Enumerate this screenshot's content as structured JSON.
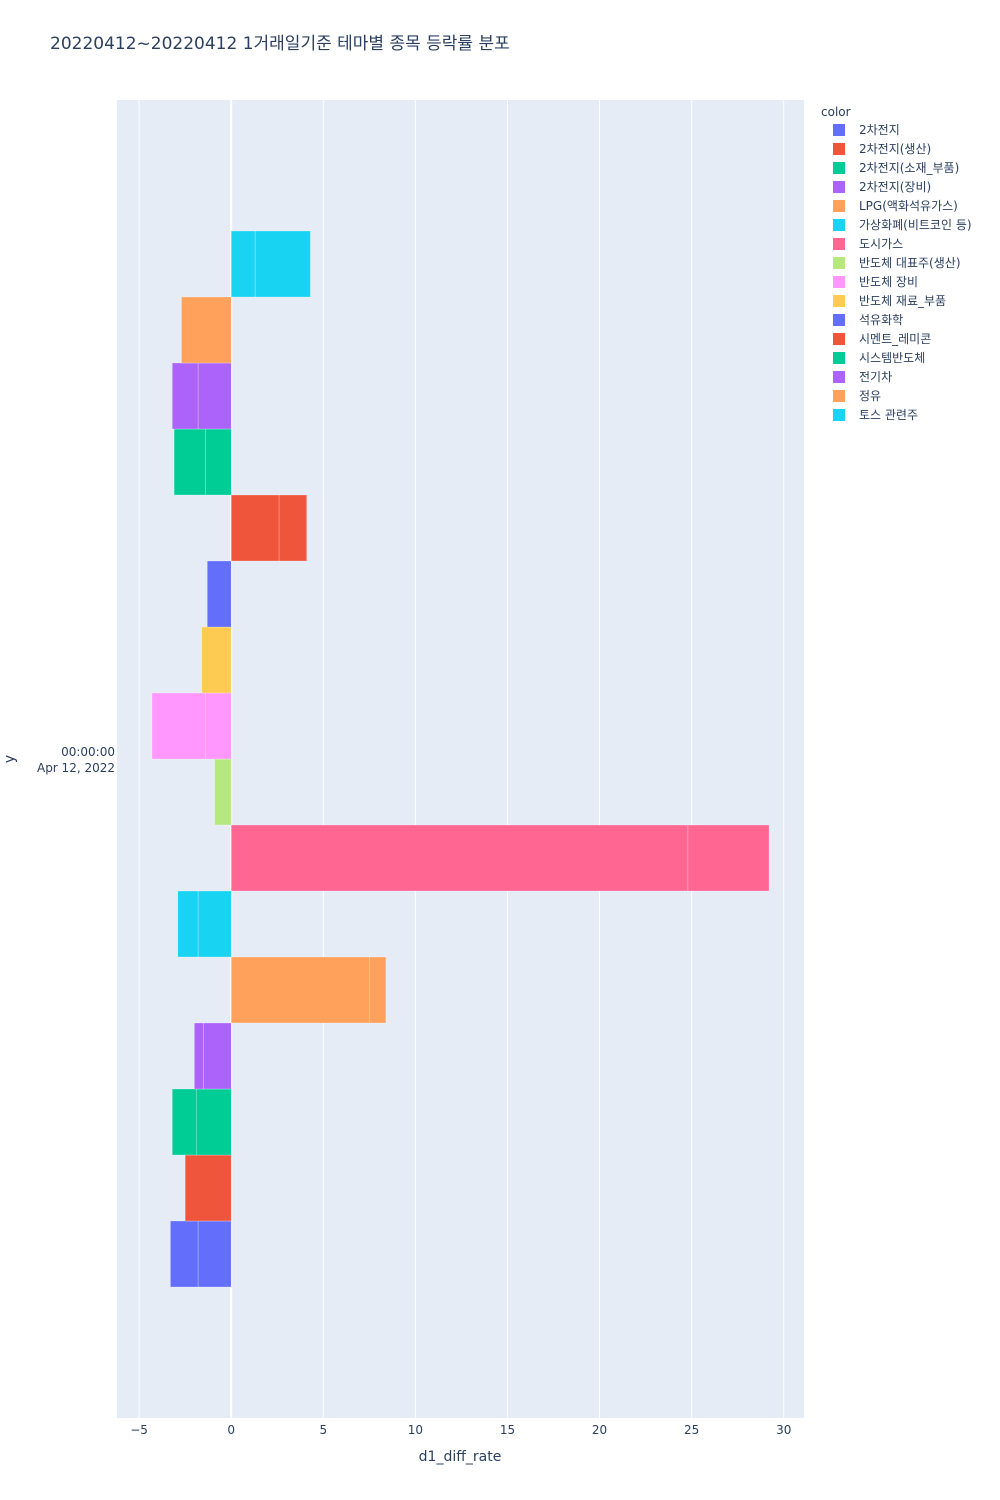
{
  "chart_data": {
    "type": "bar",
    "orientation": "horizontal",
    "barmode": "relative",
    "title": "20220412~20220412 1거래일기준 테마별 종목 등락률 분포",
    "xlabel": "d1_diff_rate",
    "ylabel": "y",
    "y_category_label": [
      "00:00:00",
      "Apr 12, 2022"
    ],
    "xlim": [
      -6.2,
      31.1
    ],
    "x_ticks": [
      -5,
      0,
      5,
      10,
      15,
      20,
      25,
      30
    ],
    "legend_title": "color",
    "legend_position": "right",
    "series": [
      {
        "name": "2차전지",
        "color": "#636efa",
        "segments": [
          -1.8,
          -1.5
        ]
      },
      {
        "name": "2차전지(생산)",
        "color": "#EF553B",
        "segments": [
          -2.5
        ]
      },
      {
        "name": "2차전지(소재_부품)",
        "color": "#00cc96",
        "segments": [
          -1.9,
          -1.3
        ]
      },
      {
        "name": "2차전지(장비)",
        "color": "#ab63fa",
        "segments": [
          -1.5,
          -0.5
        ]
      },
      {
        "name": "LPG(액화석유가스)",
        "color": "#FFA15A",
        "segments": [
          7.5,
          0.9
        ]
      },
      {
        "name": "가상화폐(비트코인 등)",
        "color": "#19d3f3",
        "segments": [
          -1.8,
          -1.1
        ]
      },
      {
        "name": "도시가스",
        "color": "#FF6692",
        "segments": [
          24.8,
          4.4
        ]
      },
      {
        "name": "반도체 대표주(생산)",
        "color": "#B6E880",
        "segments": [
          -0.9
        ]
      },
      {
        "name": "반도체 장비",
        "color": "#FF97FF",
        "segments": [
          -1.4,
          -2.9
        ]
      },
      {
        "name": "반도체 재료_부품",
        "color": "#FECB52",
        "segments": [
          -1.6
        ]
      },
      {
        "name": "석유화학",
        "color": "#636efa",
        "segments": [
          -1.3
        ]
      },
      {
        "name": "시멘트_레미콘",
        "color": "#EF553B",
        "segments": [
          2.6,
          1.5
        ]
      },
      {
        "name": "시스템반도체",
        "color": "#00cc96",
        "segments": [
          -1.4,
          -1.7
        ]
      },
      {
        "name": "전기차",
        "color": "#ab63fa",
        "segments": [
          -1.8,
          -1.4
        ]
      },
      {
        "name": "정유",
        "color": "#FFA15A",
        "segments": [
          -2.7
        ]
      },
      {
        "name": "토스 관련주",
        "color": "#19d3f3",
        "segments": [
          1.3,
          3.0
        ]
      }
    ]
  }
}
